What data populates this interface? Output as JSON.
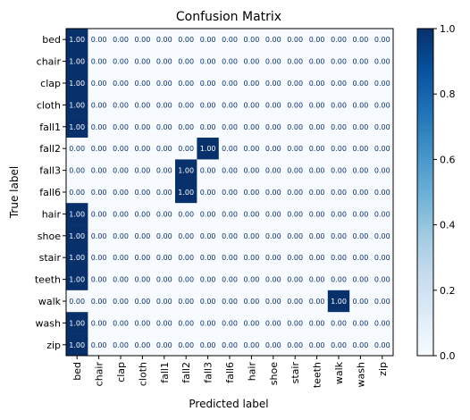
{
  "chart_data": {
    "type": "heatmap",
    "title": "Confusion Matrix",
    "xlabel": "Predicted label",
    "ylabel": "True label",
    "rows": [
      "bed",
      "chair",
      "clap",
      "cloth",
      "fall1",
      "fall2",
      "fall3",
      "fall6",
      "hair",
      "shoe",
      "stair",
      "teeth",
      "walk",
      "wash",
      "zip"
    ],
    "columns": [
      "bed",
      "chair",
      "clap",
      "cloth",
      "fall1",
      "fall2",
      "fall3",
      "fall6",
      "hair",
      "shoe",
      "stair",
      "teeth",
      "walk",
      "wash",
      "zip"
    ],
    "values": [
      [
        1,
        0,
        0,
        0,
        0,
        0,
        0,
        0,
        0,
        0,
        0,
        0,
        0,
        0,
        0
      ],
      [
        1,
        0,
        0,
        0,
        0,
        0,
        0,
        0,
        0,
        0,
        0,
        0,
        0,
        0,
        0
      ],
      [
        1,
        0,
        0,
        0,
        0,
        0,
        0,
        0,
        0,
        0,
        0,
        0,
        0,
        0,
        0
      ],
      [
        1,
        0,
        0,
        0,
        0,
        0,
        0,
        0,
        0,
        0,
        0,
        0,
        0,
        0,
        0
      ],
      [
        1,
        0,
        0,
        0,
        0,
        0,
        0,
        0,
        0,
        0,
        0,
        0,
        0,
        0,
        0
      ],
      [
        0,
        0,
        0,
        0,
        0,
        0,
        1,
        0,
        0,
        0,
        0,
        0,
        0,
        0,
        0
      ],
      [
        0,
        0,
        0,
        0,
        0,
        1,
        0,
        0,
        0,
        0,
        0,
        0,
        0,
        0,
        0
      ],
      [
        0,
        0,
        0,
        0,
        0,
        1,
        0,
        0,
        0,
        0,
        0,
        0,
        0,
        0,
        0
      ],
      [
        1,
        0,
        0,
        0,
        0,
        0,
        0,
        0,
        0,
        0,
        0,
        0,
        0,
        0,
        0
      ],
      [
        1,
        0,
        0,
        0,
        0,
        0,
        0,
        0,
        0,
        0,
        0,
        0,
        0,
        0,
        0
      ],
      [
        1,
        0,
        0,
        0,
        0,
        0,
        0,
        0,
        0,
        0,
        0,
        0,
        0,
        0,
        0
      ],
      [
        1,
        0,
        0,
        0,
        0,
        0,
        0,
        0,
        0,
        0,
        0,
        0,
        0,
        0,
        0
      ],
      [
        0,
        0,
        0,
        0,
        0,
        0,
        0,
        0,
        0,
        0,
        0,
        0,
        1,
        0,
        0
      ],
      [
        1,
        0,
        0,
        0,
        0,
        0,
        0,
        0,
        0,
        0,
        0,
        0,
        0,
        0,
        0
      ],
      [
        1,
        0,
        0,
        0,
        0,
        0,
        0,
        0,
        0,
        0,
        0,
        0,
        0,
        0,
        0
      ]
    ],
    "cell_label_format": "0.00",
    "colormap": "Blues",
    "color_low": "#f7fbff",
    "color_high": "#08306b",
    "label_color_light": "#ffffff",
    "label_color_dark": "#08306b",
    "colorbar": {
      "range": [
        0.0,
        1.0
      ],
      "ticks": [
        "0.0",
        "0.2",
        "0.4",
        "0.6",
        "0.8",
        "1.0"
      ]
    }
  }
}
